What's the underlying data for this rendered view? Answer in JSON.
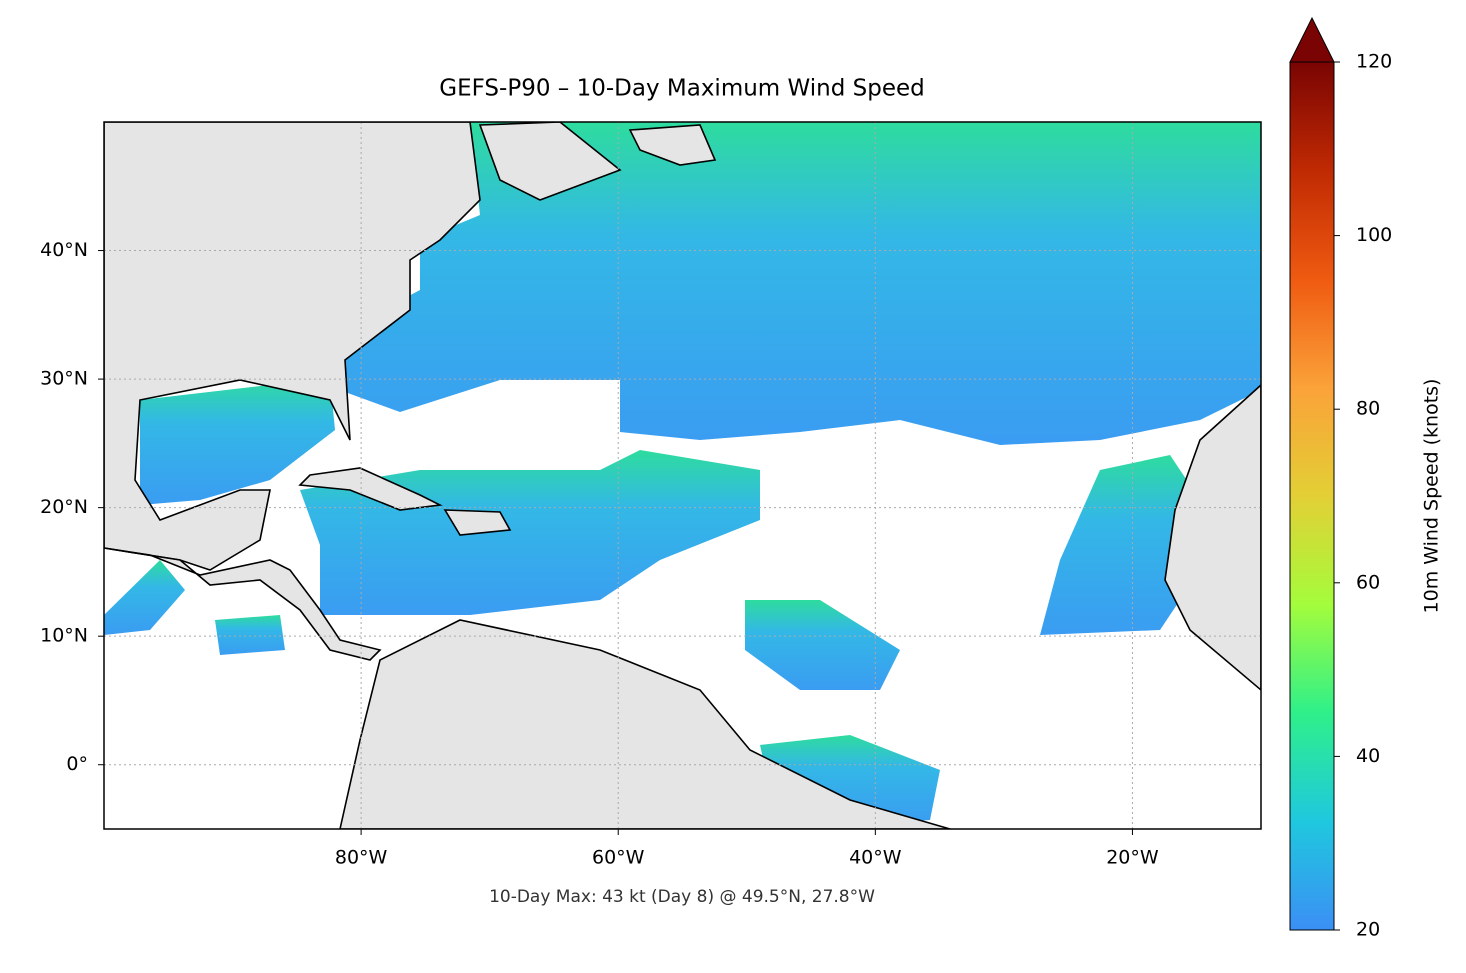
{
  "chart_data": {
    "type": "map",
    "title": "GEFS-P90 – 10-Day Maximum Wind Speed",
    "annotation": "10-Day Max: 43 kt (Day 8) @ 49.5°N, 27.8°W",
    "xlim": [
      -100,
      -10
    ],
    "ylim": [
      -5,
      50
    ],
    "xticks": [
      {
        "value": -80,
        "label": "80°W"
      },
      {
        "value": -60,
        "label": "60°W"
      },
      {
        "value": -40,
        "label": "40°W"
      },
      {
        "value": -20,
        "label": "20°W"
      }
    ],
    "yticks": [
      {
        "value": 0,
        "label": "0°"
      },
      {
        "value": 10,
        "label": "10°N"
      },
      {
        "value": 20,
        "label": "20°N"
      },
      {
        "value": 30,
        "label": "30°N"
      },
      {
        "value": 40,
        "label": "40°N"
      }
    ],
    "grid": true,
    "colorbar": {
      "label": "10m Wind Speed (knots)",
      "lim": [
        20,
        120
      ],
      "ticks": [
        20,
        40,
        60,
        80,
        100,
        120
      ],
      "colors": [
        "#3b8ff5",
        "#1fc8de",
        "#2ef08a",
        "#a4fc3c",
        "#e3cf35",
        "#fba239",
        "#ef5a11",
        "#c02a03",
        "#7a0403"
      ]
    }
  }
}
